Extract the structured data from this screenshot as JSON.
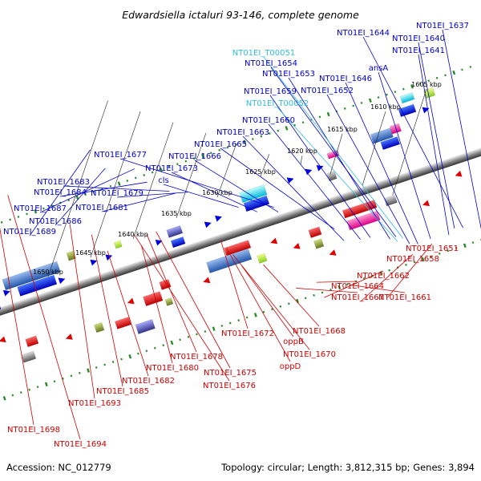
{
  "title": "Edwardsiella ictaluri 93-146, complete genome",
  "footer": {
    "accession": "Accession: NC_012779",
    "summary": "Topology: circular; Length: 3,812,315 bp; Genes: 3,894"
  },
  "colors": {
    "forward_label": "#0000cc",
    "reverse_label": "#cc0000",
    "trna_label": "#33bbdd",
    "backbone": "#888888",
    "tick": "#2a8a2a"
  },
  "kbp_labels": [
    "1605 kbp",
    "1610 kbp",
    "1615 kbp",
    "1620 kbp",
    "1625 kbp",
    "1630 kbp",
    "1635 kbp",
    "1640 kbp",
    "1645 kbp",
    "1650 kbp"
  ],
  "forward_labels": [
    "NT01EI_1637",
    "NT01EI_1644",
    "NT01EI_1640",
    "NT01EI_1641",
    "NT01EI_1654",
    "ansA",
    "NT01EI_1653",
    "NT01EI_1646",
    "NT01EI_1659",
    "NT01EI_1652",
    "NT01EI_1660",
    "NT01EI_1663",
    "NT01EI_1665",
    "NT01EI_1677",
    "NT01EI_1666",
    "NT01EI_1673",
    "cls",
    "NT01EI_1683",
    "NT01EI_1684",
    "NT01EI_1679",
    "NT01EI_1681",
    "NT01EI_1687",
    "NT01EI_1686",
    "NT01EI_1689"
  ],
  "trna_labels": [
    "NT01EI_T00051",
    "NT01EI_T00052"
  ],
  "reverse_labels": [
    "NT01EI_1651",
    "NT01EI_1658",
    "NT01EI_1662",
    "NT01EI_1664",
    "NT01EI_1661",
    "NT01EI_1667",
    "NT01EI_1668",
    "NT01EI_1672",
    "oppB",
    "NT01EI_1670",
    "oppD",
    "NT01EI_1678",
    "NT01EI_1675",
    "NT01EI_1680",
    "NT01EI_1676",
    "NT01EI_1682",
    "NT01EI_1685",
    "NT01EI_1693",
    "NT01EI_1698",
    "NT01EI_1694"
  ]
}
